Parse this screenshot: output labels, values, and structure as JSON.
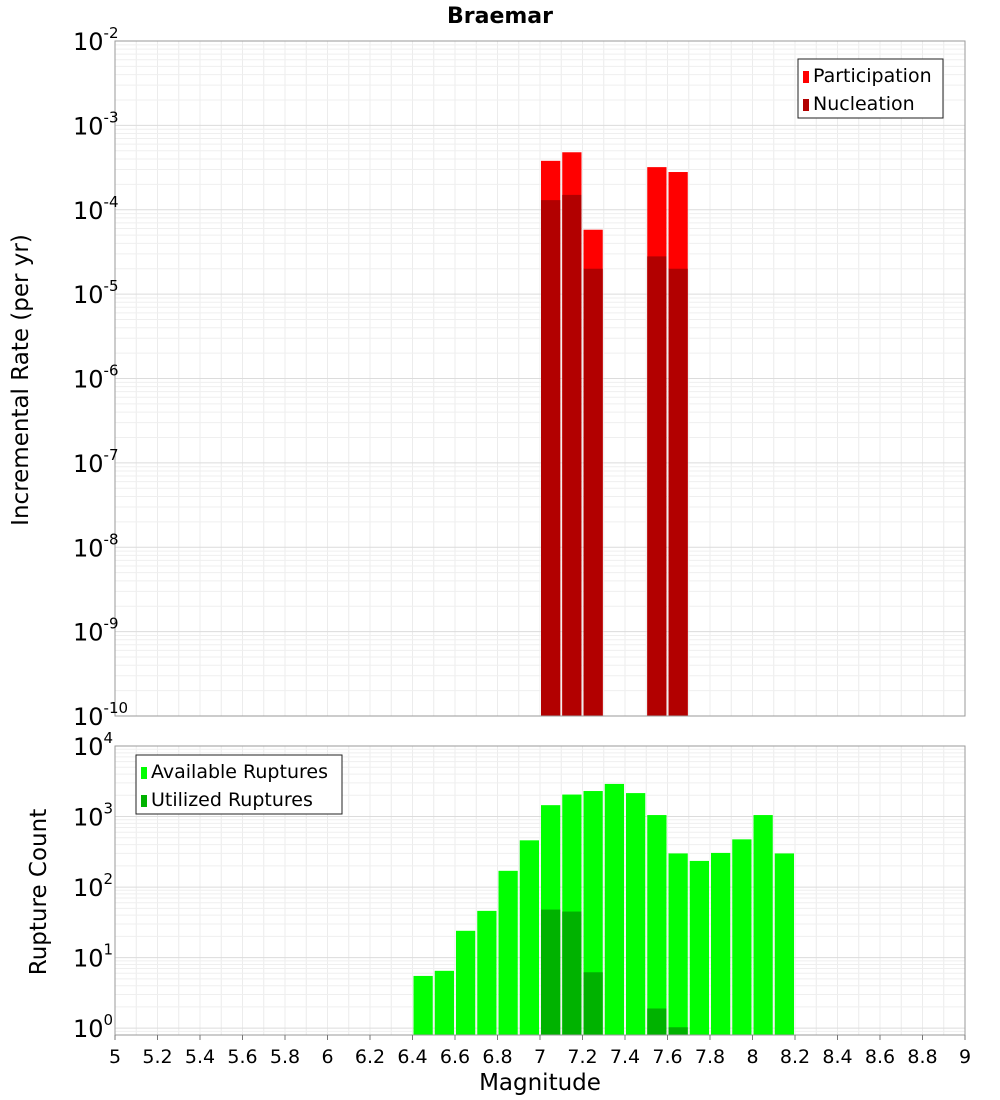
{
  "chart_data": [
    {
      "type": "bar",
      "title": "Braemar",
      "xlabel": "",
      "ylabel": "Incremental Rate (per yr)",
      "xlim": [
        5,
        9
      ],
      "ylim": [
        1e-10,
        0.01
      ],
      "yscale": "log",
      "bin_width": 0.1,
      "grid": true,
      "legend_position": "top-right",
      "series": [
        {
          "name": "Participation",
          "color": "#ff0000",
          "x": [
            7.05,
            7.15,
            7.25,
            7.55,
            7.65
          ],
          "values": [
            0.00038,
            0.00048,
            5.8e-05,
            0.00032,
            0.00028
          ]
        },
        {
          "name": "Nucleation",
          "color": "#b20000",
          "x": [
            7.05,
            7.15,
            7.25,
            7.55,
            7.65
          ],
          "values": [
            0.00013,
            0.00015,
            2e-05,
            2.8e-05,
            2e-05
          ]
        }
      ],
      "yticks": [
        {
          "base": "10",
          "exp": "-10"
        },
        {
          "base": "10",
          "exp": "-9"
        },
        {
          "base": "10",
          "exp": "-8"
        },
        {
          "base": "10",
          "exp": "-7"
        },
        {
          "base": "10",
          "exp": "-6"
        },
        {
          "base": "10",
          "exp": "-5"
        },
        {
          "base": "10",
          "exp": "-4"
        },
        {
          "base": "10",
          "exp": "-3"
        },
        {
          "base": "10",
          "exp": "-2"
        }
      ]
    },
    {
      "type": "bar",
      "title": "",
      "xlabel": "Magnitude",
      "ylabel": "Rupture Count",
      "xlim": [
        5,
        9
      ],
      "ylim": [
        0.8,
        10000
      ],
      "yscale": "log",
      "bin_width": 0.1,
      "grid": true,
      "legend_position": "top-left",
      "series": [
        {
          "name": "Available Ruptures",
          "color": "#00ff00",
          "x": [
            6.45,
            6.55,
            6.65,
            6.75,
            6.85,
            6.95,
            7.05,
            7.15,
            7.25,
            7.35,
            7.45,
            7.55,
            7.65,
            7.75,
            7.85,
            7.95,
            8.05,
            8.15
          ],
          "values": [
            5.5,
            6.5,
            24,
            46,
            170,
            460,
            1450,
            2050,
            2300,
            2900,
            2150,
            1050,
            300,
            235,
            305,
            475,
            1050,
            300
          ]
        },
        {
          "name": "Utilized Ruptures",
          "color": "#00b200",
          "x": [
            7.05,
            7.15,
            7.25,
            7.55,
            7.65
          ],
          "values": [
            48,
            45,
            6.2,
            1.9,
            1.03
          ]
        }
      ],
      "xticks": [
        "5",
        "5.2",
        "5.4",
        "5.6",
        "5.8",
        "6",
        "6.2",
        "6.4",
        "6.6",
        "6.8",
        "7",
        "7.2",
        "7.4",
        "7.6",
        "7.8",
        "8",
        "8.2",
        "8.4",
        "8.6",
        "8.8",
        "9"
      ],
      "yticks": [
        {
          "base": "10",
          "exp": "0"
        },
        {
          "base": "10",
          "exp": "1"
        },
        {
          "base": "10",
          "exp": "2"
        },
        {
          "base": "10",
          "exp": "3"
        },
        {
          "base": "10",
          "exp": "4"
        }
      ]
    }
  ]
}
